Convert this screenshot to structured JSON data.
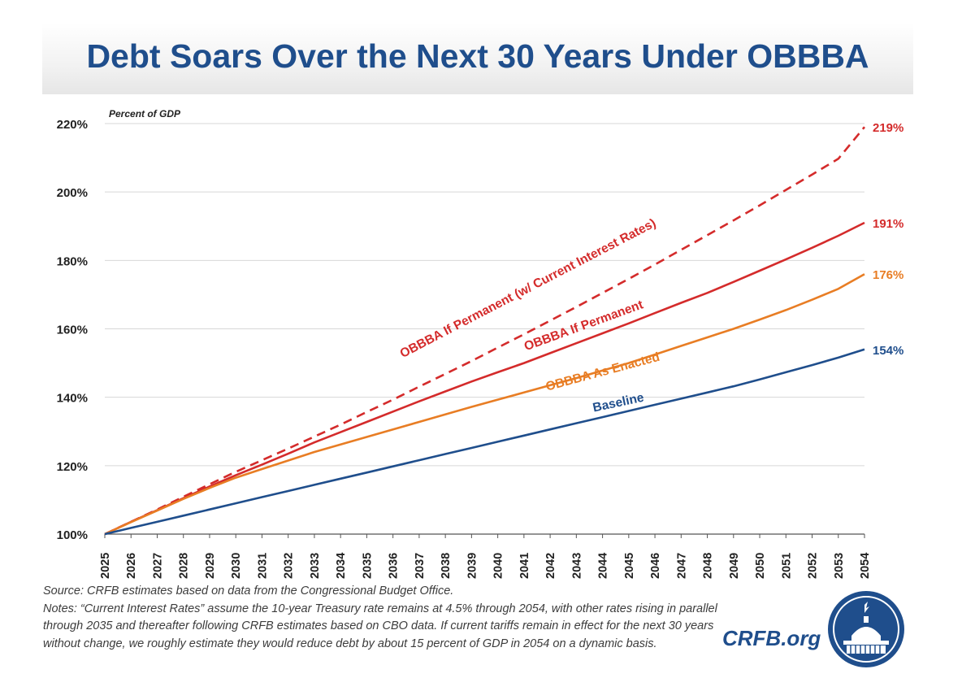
{
  "header": {
    "title": "Debt Soars Over the Next 30 Years Under OBBBA"
  },
  "chart_data": {
    "type": "line",
    "title": "Debt Soars Over the Next 30 Years Under OBBBA",
    "ylabel": "Percent of GDP",
    "xlabel": "",
    "ylim": [
      100,
      220
    ],
    "yticks": [
      100,
      120,
      140,
      160,
      180,
      200,
      220
    ],
    "ytick_labels": [
      "100%",
      "120%",
      "140%",
      "160%",
      "180%",
      "200%",
      "220%"
    ],
    "grid": true,
    "x": [
      2025,
      2026,
      2027,
      2028,
      2029,
      2030,
      2031,
      2032,
      2033,
      2034,
      2035,
      2036,
      2037,
      2038,
      2039,
      2040,
      2041,
      2042,
      2043,
      2044,
      2045,
      2046,
      2047,
      2048,
      2049,
      2050,
      2051,
      2052,
      2053,
      2054
    ],
    "series": [
      {
        "name": "OBBBA If Permanent (w/ Current Interest Rates)",
        "style": "dashed",
        "color": "#d42b2b",
        "end_label": "219%",
        "values": [
          100.0,
          103.6,
          107.2,
          110.9,
          114.6,
          118.2,
          121.6,
          125.0,
          128.5,
          132.0,
          135.7,
          139.3,
          143.1,
          146.8,
          150.6,
          154.5,
          158.4,
          162.4,
          166.4,
          170.5,
          174.6,
          178.8,
          183.1,
          187.4,
          191.7,
          196.1,
          200.6,
          205.1,
          209.7,
          219.0
        ]
      },
      {
        "name": "OBBBA If Permanent",
        "style": "solid",
        "color": "#d42b2b",
        "end_label": "191%",
        "values": [
          100.0,
          103.6,
          107.0,
          110.5,
          113.9,
          117.2,
          120.3,
          123.5,
          126.8,
          129.8,
          132.8,
          135.8,
          138.8,
          141.7,
          144.6,
          147.3,
          150.0,
          152.9,
          155.8,
          158.7,
          161.6,
          164.6,
          167.6,
          170.5,
          173.7,
          177.0,
          180.3,
          183.7,
          187.2,
          191.0
        ]
      },
      {
        "name": "OBBBA As Enacted",
        "style": "solid",
        "color": "#e87d24",
        "end_label": "176%",
        "values": [
          100.0,
          103.5,
          106.9,
          110.3,
          113.5,
          116.5,
          119.0,
          121.5,
          124.0,
          126.2,
          128.4,
          130.6,
          132.8,
          135.0,
          137.2,
          139.3,
          141.4,
          143.5,
          145.6,
          147.8,
          150.0,
          152.5,
          155.0,
          157.5,
          160.0,
          162.7,
          165.5,
          168.5,
          171.7,
          176.0
        ]
      },
      {
        "name": "Baseline",
        "style": "solid",
        "color": "#1f4e8c",
        "end_label": "154%",
        "values": [
          100.0,
          101.8,
          103.6,
          105.4,
          107.2,
          109.0,
          110.8,
          112.6,
          114.4,
          116.2,
          118.0,
          119.8,
          121.6,
          123.4,
          125.2,
          127.0,
          128.8,
          130.6,
          132.4,
          134.2,
          136.0,
          137.8,
          139.6,
          141.4,
          143.2,
          145.2,
          147.3,
          149.4,
          151.6,
          154.0
        ]
      }
    ]
  },
  "notes": {
    "source": "Source: CRFB estimates based on data from the Congressional Budget Office.",
    "text": "Notes: “Current Interest Rates” assume the 10-year Treasury rate remains at 4.5% through 2054, with other rates rising in parallel through 2035 and thereafter following CRFB estimates based on CBO data. If current tariffs remain in effect for the next 30 years without change, we roughly estimate they would reduce debt by about 15 percent of GDP in 2054 on a dynamic basis."
  },
  "branding": {
    "site": "CRFB.org"
  },
  "colors": {
    "navy": "#1f4e8c",
    "red": "#d42b2b",
    "orange": "#e87d24"
  }
}
